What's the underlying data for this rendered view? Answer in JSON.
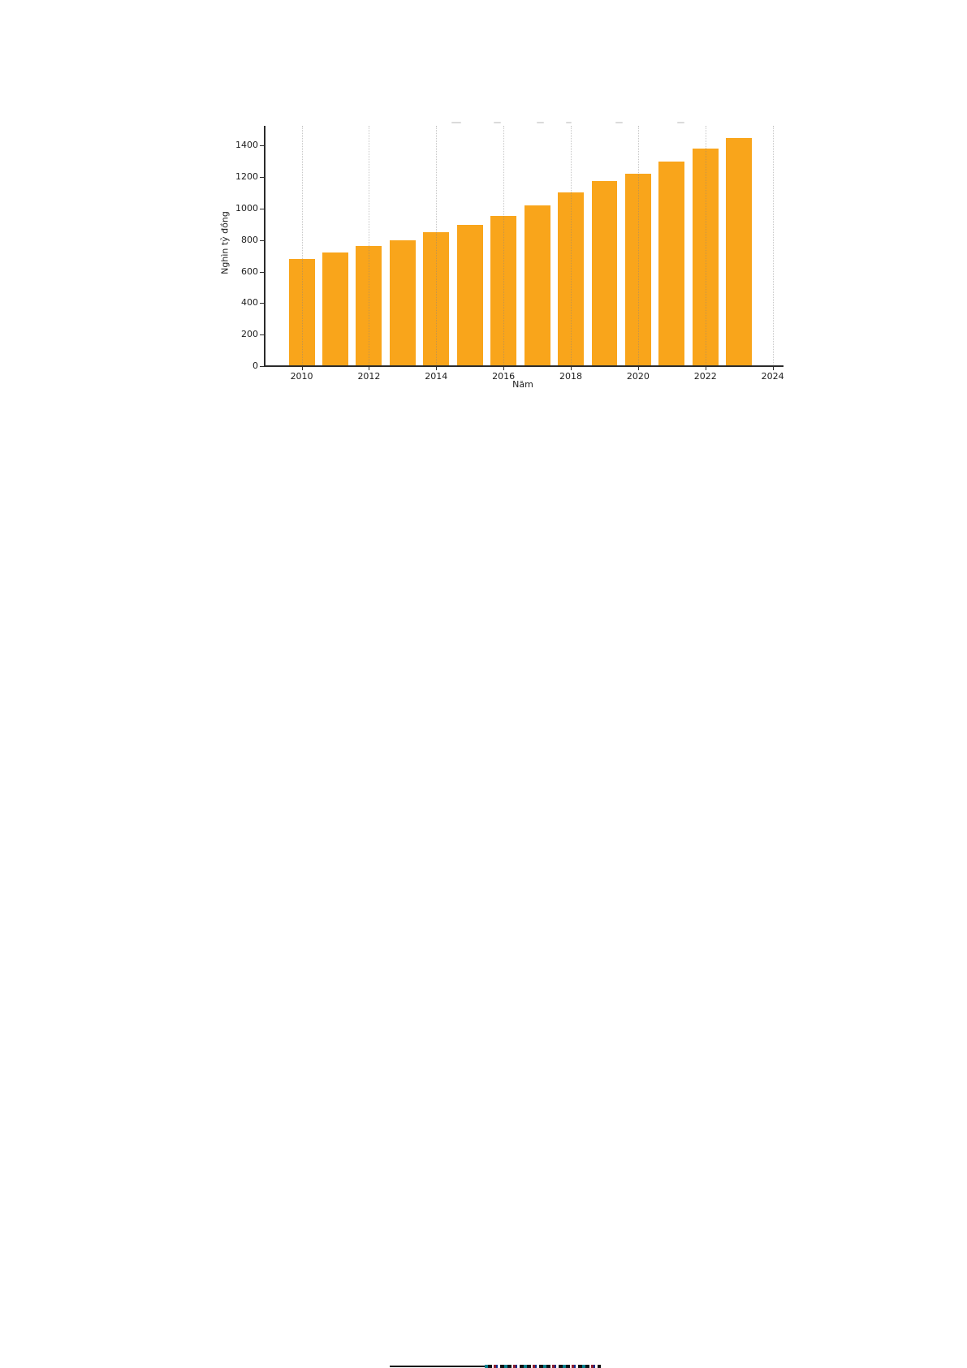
{
  "chart_data": {
    "type": "bar",
    "title": "",
    "xlabel": "Năm",
    "ylabel": "Nghìn tỷ đồng",
    "x": [
      2010,
      2011,
      2012,
      2013,
      2014,
      2015,
      2016,
      2017,
      2018,
      2019,
      2020,
      2021,
      2022,
      2023
    ],
    "values": [
      680,
      720,
      760,
      800,
      850,
      895,
      955,
      1020,
      1100,
      1175,
      1220,
      1300,
      1380,
      1450
    ],
    "xticks": [
      2010,
      2012,
      2014,
      2016,
      2018,
      2020,
      2022,
      2024
    ],
    "yticks": [
      0,
      200,
      400,
      600,
      800,
      1000,
      1200,
      1400
    ],
    "xlim": [
      2008.9,
      2024.25
    ],
    "ylim": [
      0,
      1525
    ],
    "bar_width_years": 0.77,
    "bar_color": "#F9A51B",
    "grid": "vertical-dotted",
    "grid_color": "#828282",
    "axis_color": "#2b2b2b",
    "legend": "none"
  }
}
